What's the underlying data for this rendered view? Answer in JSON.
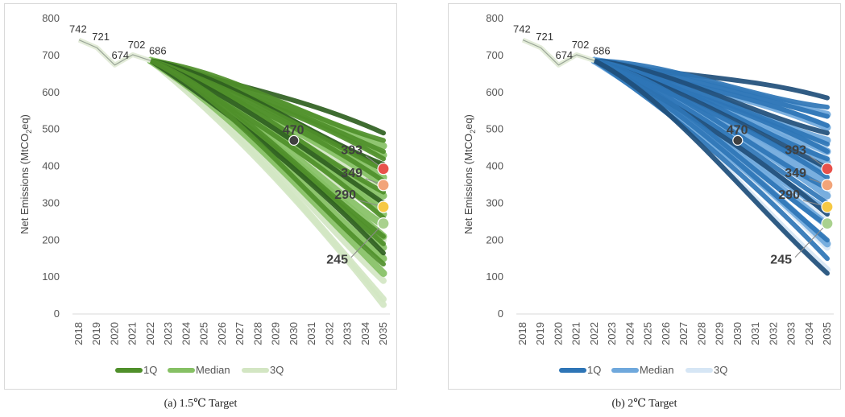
{
  "captions": {
    "a": "(a)  1.5℃  Target",
    "b": "(b)  2℃  Target"
  },
  "chart_data": [
    {
      "type": "line",
      "id": "a",
      "title": "",
      "ylabel": "Net Emissions (MtCO₂eq)",
      "ylabel_parts": {
        "pre": "Net Emissions (MtCO",
        "sub": "2",
        "post": "eq)"
      },
      "ylim": [
        0,
        800
      ],
      "yticks": [
        "0",
        "100",
        "200",
        "300",
        "400",
        "500",
        "600",
        "700",
        "800"
      ],
      "categories": [
        "2018",
        "2019",
        "2020",
        "2021",
        "2022",
        "2023",
        "2024",
        "2025",
        "2026",
        "2027",
        "2028",
        "2029",
        "2030",
        "2031",
        "2032",
        "2033",
        "2034",
        "2035"
      ],
      "historical": {
        "x": [
          "2018",
          "2019",
          "2020",
          "2021",
          "2022"
        ],
        "values": [
          742,
          721,
          674,
          702,
          686
        ],
        "labels": [
          "742",
          "721",
          "674",
          "702",
          "686"
        ]
      },
      "colors": {
        "q1": "#4f8f2a",
        "median": "#86c064",
        "q3": "#d3e6c3",
        "dark": "#2f5f1f"
      },
      "legend": [
        "1Q",
        "Median",
        "3Q"
      ],
      "scenario_endpoints_2035": {
        "q1": [
          490,
          470,
          440,
          420,
          405,
          390,
          360,
          330,
          300,
          260,
          210,
          190,
          165,
          135
        ],
        "median": [
          455,
          430,
          395,
          370,
          350,
          320,
          290,
          270,
          240,
          210,
          180,
          150,
          110
        ],
        "q3": [
          400,
          340,
          300,
          270,
          200,
          150,
          90,
          40,
          25
        ]
      },
      "markers": [
        {
          "label": "470",
          "year": "2030",
          "value": 470,
          "color": "#404040"
        },
        {
          "label": "393",
          "year": "2035",
          "value": 393,
          "color": "#e8514b"
        },
        {
          "label": "349",
          "year": "2035",
          "value": 349,
          "color": "#f2a479"
        },
        {
          "label": "290",
          "year": "2035",
          "value": 290,
          "color": "#f6c944"
        },
        {
          "label": "245",
          "year": "2035",
          "value": 245,
          "color": "#a9d18e"
        }
      ]
    },
    {
      "type": "line",
      "id": "b",
      "title": "",
      "ylabel": "Net Emissions (MtCO₂eq)",
      "ylabel_parts": {
        "pre": "Net Emissions (MtCO",
        "sub": "2",
        "post": "eq)"
      },
      "ylim": [
        0,
        800
      ],
      "yticks": [
        "0",
        "100",
        "200",
        "300",
        "400",
        "500",
        "600",
        "700",
        "800"
      ],
      "categories": [
        "2018",
        "2019",
        "2020",
        "2021",
        "2022",
        "2023",
        "2024",
        "2025",
        "2026",
        "2027",
        "2028",
        "2029",
        "2030",
        "2031",
        "2032",
        "2033",
        "2034",
        "2035"
      ],
      "historical": {
        "x": [
          "2018",
          "2019",
          "2020",
          "2021",
          "2022"
        ],
        "values": [
          742,
          721,
          674,
          702,
          686
        ],
        "labels": [
          "742",
          "721",
          "674",
          "702",
          "686"
        ]
      },
      "colors": {
        "q1": "#2e75b6",
        "median": "#6fa8dc",
        "q3": "#d6e6f5",
        "dark": "#1f4e79"
      },
      "legend": [
        "1Q",
        "Median",
        "3Q"
      ],
      "scenario_endpoints_2035": {
        "q1": [
          585,
          560,
          535,
          510,
          490,
          460,
          440,
          420,
          395,
          370,
          340,
          300,
          270,
          240,
          200,
          150,
          110
        ],
        "median": [
          540,
          505,
          470,
          440,
          410,
          385,
          355,
          320,
          280,
          240,
          190
        ],
        "q3": [
          460,
          420,
          380,
          330,
          250,
          180,
          120
        ]
      },
      "markers": [
        {
          "label": "470",
          "year": "2030",
          "value": 470,
          "color": "#404040"
        },
        {
          "label": "393",
          "year": "2035",
          "value": 393,
          "color": "#e8514b"
        },
        {
          "label": "349",
          "year": "2035",
          "value": 349,
          "color": "#f2a479"
        },
        {
          "label": "290",
          "year": "2035",
          "value": 290,
          "color": "#f6c944"
        },
        {
          "label": "245",
          "year": "2035",
          "value": 245,
          "color": "#a9d18e"
        }
      ]
    }
  ]
}
